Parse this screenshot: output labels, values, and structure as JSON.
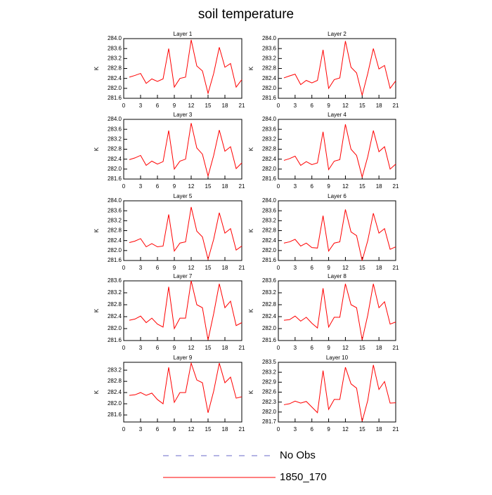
{
  "title": "soil temperature",
  "legend": [
    {
      "label": "No Obs",
      "color": "#6a6ac8",
      "dashed": true
    },
    {
      "label": "1850_170",
      "color": "#ff0000",
      "dashed": false
    }
  ],
  "chart_data": [
    {
      "type": "line",
      "title": "Layer 1",
      "y_label": "K",
      "x": [
        1,
        2,
        3,
        4,
        5,
        6,
        7,
        8,
        9,
        10,
        11,
        12,
        13,
        14,
        15,
        16,
        17,
        18,
        19,
        20,
        21
      ],
      "color": "#ff0000",
      "values": [
        282.45,
        282.52,
        282.6,
        282.2,
        282.38,
        282.28,
        282.38,
        283.6,
        282.05,
        282.4,
        282.45,
        283.95,
        282.9,
        282.7,
        281.8,
        282.6,
        283.65,
        282.85,
        283.0,
        282.05,
        282.35
      ],
      "xlim": [
        0,
        21
      ],
      "xticks": [
        0,
        3,
        6,
        9,
        12,
        15,
        18,
        21
      ],
      "ylim": [
        281.6,
        284.0
      ],
      "yticks": [
        281.6,
        {
          "value": 282.0,
          "label": "282.0"
        },
        282.4,
        282.8,
        283.2,
        283.6,
        {
          "value": 284.0,
          "label": "284.0"
        }
      ]
    },
    {
      "type": "line",
      "title": "Layer 2",
      "y_label": "K",
      "x": [
        1,
        2,
        3,
        4,
        5,
        6,
        7,
        8,
        9,
        10,
        11,
        12,
        13,
        14,
        15,
        16,
        17,
        18,
        19,
        20,
        21
      ],
      "color": "#ff0000",
      "values": [
        282.42,
        282.5,
        282.57,
        282.15,
        282.32,
        282.22,
        282.32,
        283.55,
        282.0,
        282.35,
        282.42,
        283.9,
        282.85,
        282.62,
        281.72,
        282.6,
        283.6,
        282.78,
        282.92,
        282.0,
        282.3
      ],
      "xlim": [
        0,
        21
      ],
      "xticks": [
        0,
        3,
        6,
        9,
        12,
        15,
        18,
        21
      ],
      "ylim": [
        281.6,
        284.0
      ],
      "yticks": [
        281.6,
        {
          "value": 282.0,
          "label": "282.0"
        },
        282.4,
        282.8,
        283.2,
        283.6,
        {
          "value": 284.0,
          "label": "284.0"
        }
      ]
    },
    {
      "type": "line",
      "title": "Layer 3",
      "y_label": "K",
      "x": [
        1,
        2,
        3,
        4,
        5,
        6,
        7,
        8,
        9,
        10,
        11,
        12,
        13,
        14,
        15,
        16,
        17,
        18,
        19,
        20,
        21
      ],
      "color": "#ff0000",
      "values": [
        282.38,
        282.45,
        282.55,
        282.15,
        282.32,
        282.2,
        282.3,
        283.55,
        282.0,
        282.32,
        282.4,
        283.85,
        282.85,
        282.6,
        281.72,
        282.55,
        283.57,
        282.72,
        282.9,
        282.02,
        282.25
      ],
      "xlim": [
        0,
        21
      ],
      "xticks": [
        0,
        3,
        6,
        9,
        12,
        15,
        18,
        21
      ],
      "ylim": [
        281.6,
        284.0
      ],
      "yticks": [
        281.6,
        {
          "value": 282.0,
          "label": "282.0"
        },
        282.4,
        282.8,
        283.2,
        283.6,
        {
          "value": 284.0,
          "label": "284.0"
        }
      ]
    },
    {
      "type": "line",
      "title": "Layer 4",
      "y_label": "K",
      "x": [
        1,
        2,
        3,
        4,
        5,
        6,
        7,
        8,
        9,
        10,
        11,
        12,
        13,
        14,
        15,
        16,
        17,
        18,
        19,
        20,
        21
      ],
      "color": "#ff0000",
      "values": [
        282.35,
        282.42,
        282.52,
        282.15,
        282.3,
        282.18,
        282.25,
        283.5,
        281.98,
        282.32,
        282.38,
        283.8,
        282.8,
        282.55,
        281.68,
        282.5,
        283.55,
        282.7,
        282.9,
        282.0,
        282.2
      ],
      "xlim": [
        0,
        21
      ],
      "xticks": [
        0,
        3,
        6,
        9,
        12,
        15,
        18,
        21
      ],
      "ylim": [
        281.6,
        284.0
      ],
      "yticks": [
        281.6,
        {
          "value": 282.0,
          "label": "282.0"
        },
        282.4,
        282.8,
        283.2,
        283.6,
        {
          "value": 284.0,
          "label": "284.0"
        }
      ]
    },
    {
      "type": "line",
      "title": "Layer 5",
      "y_label": "K",
      "x": [
        1,
        2,
        3,
        4,
        5,
        6,
        7,
        8,
        9,
        10,
        11,
        12,
        13,
        14,
        15,
        16,
        17,
        18,
        19,
        20,
        21
      ],
      "color": "#ff0000",
      "values": [
        282.32,
        282.38,
        282.48,
        282.15,
        282.28,
        282.15,
        282.18,
        283.45,
        281.98,
        282.3,
        282.35,
        283.75,
        282.78,
        282.55,
        281.65,
        282.45,
        283.52,
        282.7,
        282.88,
        282.02,
        282.18
      ],
      "xlim": [
        0,
        21
      ],
      "xticks": [
        0,
        3,
        6,
        9,
        12,
        15,
        18,
        21
      ],
      "ylim": [
        281.6,
        284.0
      ],
      "yticks": [
        281.6,
        {
          "value": 282.0,
          "label": "282.0"
        },
        282.4,
        282.8,
        283.2,
        283.6,
        {
          "value": 284.0,
          "label": "284.0"
        }
      ]
    },
    {
      "type": "line",
      "title": "Layer 6",
      "y_label": "K",
      "x": [
        1,
        2,
        3,
        4,
        5,
        6,
        7,
        8,
        9,
        10,
        11,
        12,
        13,
        14,
        15,
        16,
        17,
        18,
        19,
        20,
        21
      ],
      "color": "#ff0000",
      "values": [
        282.3,
        282.35,
        282.45,
        282.18,
        282.3,
        282.12,
        282.1,
        283.4,
        281.98,
        282.3,
        282.35,
        283.65,
        282.75,
        282.6,
        281.6,
        282.4,
        283.5,
        282.7,
        282.88,
        282.05,
        282.15
      ],
      "xlim": [
        0,
        21
      ],
      "xticks": [
        0,
        3,
        6,
        9,
        12,
        15,
        18,
        21
      ],
      "ylim": [
        281.6,
        284.0
      ],
      "yticks": [
        281.6,
        {
          "value": 282.0,
          "label": "282.0"
        },
        282.4,
        282.8,
        283.2,
        283.6,
        {
          "value": 284.0,
          "label": "284.0"
        }
      ]
    },
    {
      "type": "line",
      "title": "Layer 7",
      "y_label": "K",
      "x": [
        1,
        2,
        3,
        4,
        5,
        6,
        7,
        8,
        9,
        10,
        11,
        12,
        13,
        14,
        15,
        16,
        17,
        18,
        19,
        20,
        21
      ],
      "color": "#ff0000",
      "values": [
        282.28,
        282.32,
        282.42,
        282.2,
        282.35,
        282.15,
        282.05,
        283.4,
        282.0,
        282.35,
        282.35,
        283.6,
        282.8,
        282.7,
        281.62,
        282.5,
        283.5,
        282.7,
        282.92,
        282.1,
        282.2
      ],
      "xlim": [
        0,
        21
      ],
      "xticks": [
        0,
        3,
        6,
        9,
        12,
        15,
        18,
        21
      ],
      "ylim": [
        281.6,
        283.6
      ],
      "yticks": [
        281.6,
        {
          "value": 282.0,
          "label": "282.0"
        },
        282.4,
        282.8,
        283.2,
        283.6
      ]
    },
    {
      "type": "line",
      "title": "Layer 8",
      "y_label": "K",
      "x": [
        1,
        2,
        3,
        4,
        5,
        6,
        7,
        8,
        9,
        10,
        11,
        12,
        13,
        14,
        15,
        16,
        17,
        18,
        19,
        20,
        21
      ],
      "color": "#ff0000",
      "values": [
        282.28,
        282.3,
        282.42,
        282.25,
        282.38,
        282.18,
        282.02,
        283.35,
        282.05,
        282.38,
        282.38,
        283.5,
        282.8,
        282.7,
        281.62,
        282.45,
        283.5,
        282.7,
        282.9,
        282.15,
        282.22
      ],
      "xlim": [
        0,
        21
      ],
      "xticks": [
        0,
        3,
        6,
        9,
        12,
        15,
        18,
        21
      ],
      "ylim": [
        281.6,
        283.6
      ],
      "yticks": [
        281.6,
        {
          "value": 282.0,
          "label": "282.0"
        },
        282.4,
        282.8,
        283.2,
        283.6
      ]
    },
    {
      "type": "line",
      "title": "Layer 9",
      "y_label": "K",
      "x": [
        1,
        2,
        3,
        4,
        5,
        6,
        7,
        8,
        9,
        10,
        11,
        12,
        13,
        14,
        15,
        16,
        17,
        18,
        19,
        20,
        21
      ],
      "color": "#ff0000",
      "values": [
        282.3,
        282.32,
        282.4,
        282.3,
        282.38,
        282.15,
        282.0,
        283.3,
        282.05,
        282.4,
        282.4,
        283.45,
        282.85,
        282.75,
        281.68,
        282.45,
        283.45,
        282.75,
        282.95,
        282.2,
        282.25
      ],
      "xlim": [
        0,
        21
      ],
      "xticks": [
        0,
        3,
        6,
        9,
        12,
        15,
        18,
        21
      ],
      "ylim": [
        281.35,
        283.48
      ],
      "yticks": [
        281.6,
        {
          "value": 282.0,
          "label": "282.0"
        },
        282.4,
        282.8,
        283.2
      ]
    },
    {
      "type": "line",
      "title": "Layer 10",
      "y_label": "K",
      "x": [
        1,
        2,
        3,
        4,
        5,
        6,
        7,
        8,
        9,
        10,
        11,
        12,
        13,
        14,
        15,
        16,
        17,
        18,
        19,
        20,
        21
      ],
      "color": "#ff0000",
      "values": [
        282.22,
        282.25,
        282.33,
        282.27,
        282.32,
        282.15,
        281.98,
        283.25,
        282.08,
        282.38,
        282.38,
        283.35,
        282.85,
        282.72,
        281.72,
        282.35,
        283.42,
        282.68,
        282.92,
        282.27,
        282.28
      ],
      "xlim": [
        0,
        21
      ],
      "xticks": [
        0,
        3,
        6,
        9,
        12,
        15,
        18,
        21
      ],
      "ylim": [
        281.7,
        283.5
      ],
      "yticks": [
        281.7,
        {
          "value": 282.0,
          "label": "282.0"
        },
        282.3,
        282.6,
        282.9,
        283.2,
        283.5
      ]
    }
  ]
}
